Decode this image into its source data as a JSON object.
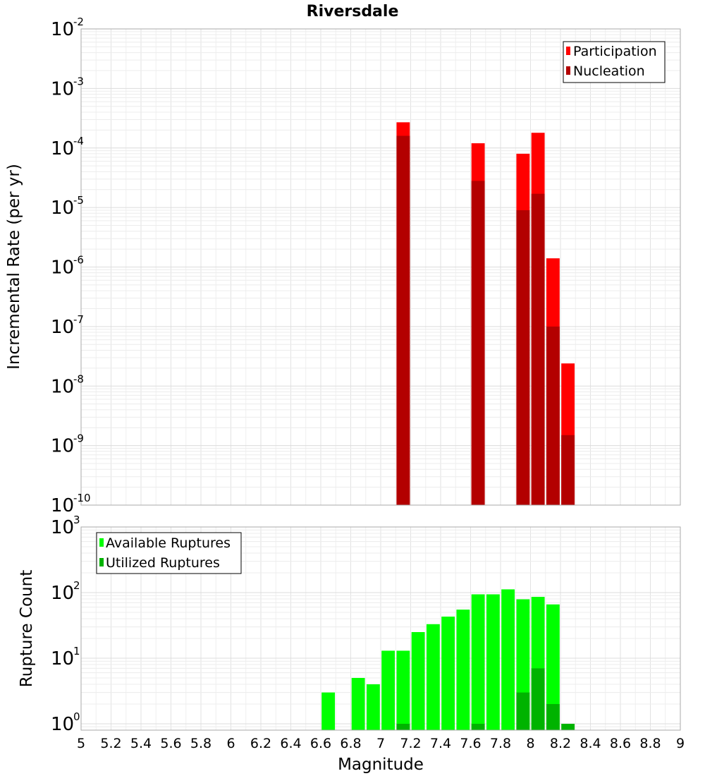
{
  "chart_data": [
    {
      "type": "bar",
      "title": "Riversdale",
      "xlabel": "",
      "ylabel": "Incremental Rate (per yr)",
      "yscale": "log",
      "ylim": [
        1e-10,
        0.01
      ],
      "xlim": [
        5,
        9
      ],
      "bar_width": 0.1,
      "grid": true,
      "legend_position": "top-right",
      "y_ticks": [
        {
          "base": "10",
          "exp": "-10"
        },
        {
          "base": "10",
          "exp": "-9"
        },
        {
          "base": "10",
          "exp": "-8"
        },
        {
          "base": "10",
          "exp": "-7"
        },
        {
          "base": "10",
          "exp": "-6"
        },
        {
          "base": "10",
          "exp": "-5"
        },
        {
          "base": "10",
          "exp": "-4"
        },
        {
          "base": "10",
          "exp": "-3"
        },
        {
          "base": "10",
          "exp": "-2"
        }
      ],
      "series": [
        {
          "name": "Participation",
          "color": "#ff0000",
          "x": [
            7.15,
            7.65,
            7.95,
            8.05,
            8.15,
            8.25
          ],
          "values": [
            0.00027,
            0.00012,
            8e-05,
            0.00018,
            1.4e-06,
            2.4e-08
          ]
        },
        {
          "name": "Nucleation",
          "color": "#b30000",
          "x": [
            7.15,
            7.65,
            7.95,
            8.05,
            8.15,
            8.25
          ],
          "values": [
            0.00016,
            2.8e-05,
            9e-06,
            1.7e-05,
            1e-07,
            1.5e-09
          ]
        }
      ]
    },
    {
      "type": "bar",
      "title": "",
      "xlabel": "Magnitude",
      "ylabel": "Rupture Count",
      "yscale": "log",
      "ylim": [
        0.8,
        1000
      ],
      "xlim": [
        5,
        9
      ],
      "bar_width": 0.1,
      "grid": true,
      "legend_position": "top-left",
      "x_ticks": [
        "5",
        "5.2",
        "5.4",
        "5.6",
        "5.8",
        "6",
        "6.2",
        "6.4",
        "6.6",
        "6.8",
        "7",
        "7.2",
        "7.4",
        "7.6",
        "7.8",
        "8",
        "8.2",
        "8.4",
        "8.6",
        "8.8",
        "9"
      ],
      "y_ticks": [
        {
          "base": "10",
          "exp": "0"
        },
        {
          "base": "10",
          "exp": "1"
        },
        {
          "base": "10",
          "exp": "2"
        },
        {
          "base": "10",
          "exp": "3"
        }
      ],
      "series": [
        {
          "name": "Available Ruptures",
          "color": "#00ff00",
          "x": [
            6.65,
            6.85,
            6.95,
            7.05,
            7.15,
            7.25,
            7.35,
            7.45,
            7.55,
            7.65,
            7.75,
            7.85,
            7.95,
            8.05,
            8.15
          ],
          "values": [
            3,
            5,
            4,
            13,
            13,
            25,
            33,
            43,
            55,
            94,
            94,
            112,
            79,
            86,
            66
          ]
        },
        {
          "name": "Utilized Ruptures",
          "color": "#00b300",
          "x": [
            7.15,
            7.65,
            7.95,
            8.05,
            8.15,
            8.25
          ],
          "values": [
            1,
            1,
            3,
            7,
            2,
            1
          ]
        }
      ]
    }
  ]
}
